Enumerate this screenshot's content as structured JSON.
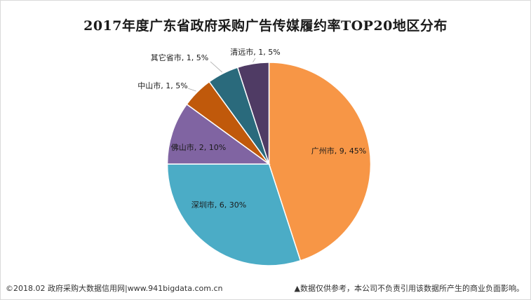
{
  "title": "2017年度广东省政府采购广告传媒履约率TOP20地区分布",
  "footer": {
    "left": "©2018.02 政府采购大数据信用网|www.941bigdata.com.cn",
    "right": "▲数据仅供参考，本公司不负责引用该数据所产生的商业负面影响。"
  },
  "chart_data": {
    "type": "pie",
    "title": "2017年度广东省政府采购广告传媒履约率TOP20地区分布",
    "start_angle_deg": 90,
    "direction": "clockwise",
    "slices": [
      {
        "name": "广州市",
        "value": 9,
        "percent": 45,
        "label": "广州市, 9, 45%",
        "color": "#f79646"
      },
      {
        "name": "深圳市",
        "value": 6,
        "percent": 30,
        "label": "深圳市, 6, 30%",
        "color": "#4bacc6"
      },
      {
        "name": "佛山市",
        "value": 2,
        "percent": 10,
        "label": "佛山市, 2, 10%",
        "color": "#8064a2"
      },
      {
        "name": "中山市",
        "value": 1,
        "percent": 5,
        "label": "中山市, 1, 5%",
        "color": "#c0590b"
      },
      {
        "name": "其它省市",
        "value": 1,
        "percent": 5,
        "label": "其它省市, 1, 5%",
        "color": "#2a6a7c"
      },
      {
        "name": "清远市",
        "value": 1,
        "percent": 5,
        "label": "清远市, 1, 5%",
        "color": "#4f3b64"
      }
    ]
  }
}
